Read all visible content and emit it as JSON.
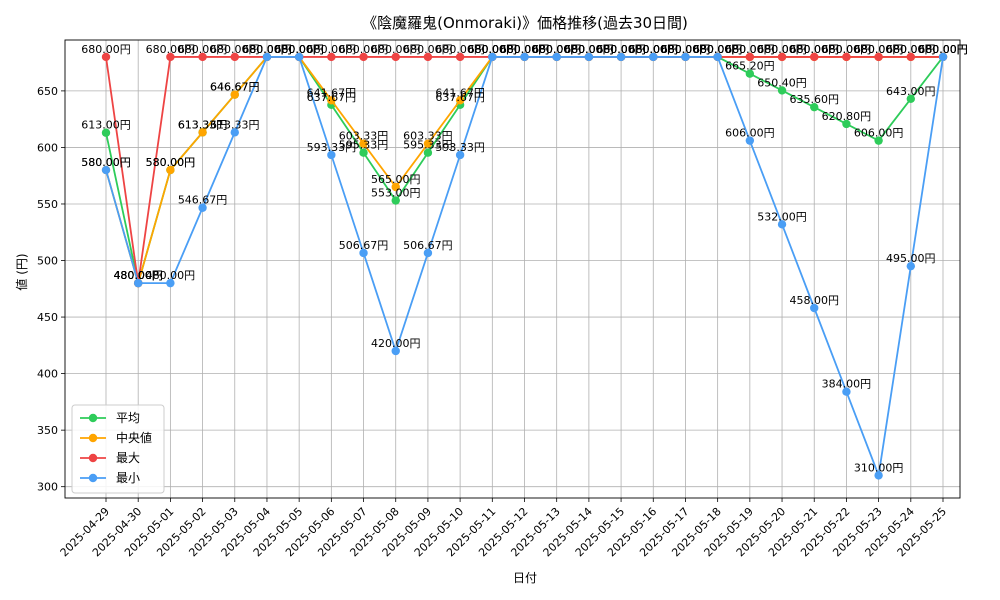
{
  "chart_data": {
    "type": "line",
    "title": "《陰魔羅鬼(Onmoraki)》価格推移(過去30日間)",
    "xlabel": "日付",
    "ylabel": "値 (円)",
    "ylim": [
      290,
      695
    ],
    "yticks": [
      300,
      350,
      400,
      450,
      500,
      550,
      600,
      650
    ],
    "grid": true,
    "legend_position": "lower-left",
    "value_suffix": "円",
    "categories": [
      "2025-04-29",
      "2025-04-30",
      "2025-05-01",
      "2025-05-02",
      "2025-05-03",
      "2025-05-04",
      "2025-05-05",
      "2025-05-06",
      "2025-05-07",
      "2025-05-08",
      "2025-05-09",
      "2025-05-10",
      "2025-05-11",
      "2025-05-12",
      "2025-05-13",
      "2025-05-14",
      "2025-05-15",
      "2025-05-16",
      "2025-05-17",
      "2025-05-18",
      "2025-05-19",
      "2025-05-20",
      "2025-05-21",
      "2025-05-22",
      "2025-05-23",
      "2025-05-24",
      "2025-05-25"
    ],
    "series": [
      {
        "name": "平均",
        "color": "#2ecc5a",
        "values": [
          613.0,
          480.0,
          580.0,
          613.33,
          646.67,
          680.0,
          680.0,
          637.67,
          595.33,
          553.0,
          595.33,
          637.67,
          680.0,
          680.0,
          680.0,
          680.0,
          680.0,
          680.0,
          680.0,
          680.0,
          665.2,
          650.4,
          635.6,
          620.8,
          606.0,
          643.0,
          680.0
        ]
      },
      {
        "name": "中央値",
        "color": "#ffa500",
        "values": [
          580.0,
          480.0,
          580.0,
          613.33,
          646.67,
          680.0,
          680.0,
          641.67,
          603.33,
          565.0,
          603.33,
          641.67,
          680.0,
          680.0,
          680.0,
          680.0,
          680.0,
          680.0,
          680.0,
          680.0,
          680.0,
          680.0,
          680.0,
          680.0,
          680.0,
          680.0,
          680.0
        ]
      },
      {
        "name": "最大",
        "color": "#ee4444",
        "values": [
          680.0,
          480.0,
          680.0,
          680.0,
          680.0,
          680.0,
          680.0,
          680.0,
          680.0,
          680.0,
          680.0,
          680.0,
          680.0,
          680.0,
          680.0,
          680.0,
          680.0,
          680.0,
          680.0,
          680.0,
          680.0,
          680.0,
          680.0,
          680.0,
          680.0,
          680.0,
          680.0
        ]
      },
      {
        "name": "最小",
        "color": "#4a9ef5",
        "values": [
          580.0,
          480.0,
          480.0,
          546.67,
          613.33,
          680.0,
          680.0,
          593.33,
          506.67,
          420.0,
          506.67,
          593.33,
          680.0,
          680.0,
          680.0,
          680.0,
          680.0,
          680.0,
          680.0,
          680.0,
          606.0,
          532.0,
          458.0,
          384.0,
          310.0,
          495.0,
          680.0
        ]
      }
    ]
  }
}
